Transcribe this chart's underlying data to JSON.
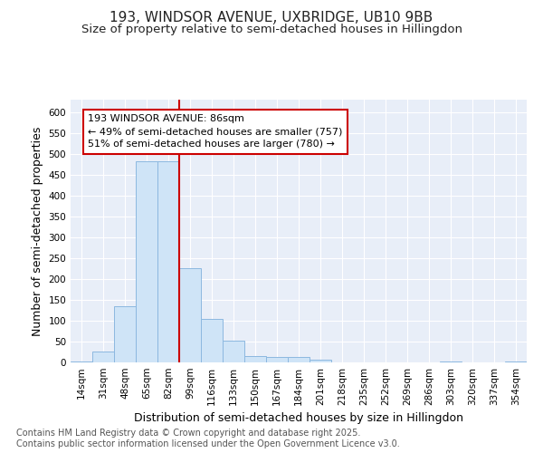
{
  "title_line1": "193, WINDSOR AVENUE, UXBRIDGE, UB10 9BB",
  "title_line2": "Size of property relative to semi-detached houses in Hillingdon",
  "xlabel": "Distribution of semi-detached houses by size in Hillingdon",
  "ylabel": "Number of semi-detached properties",
  "categories": [
    "14sqm",
    "31sqm",
    "48sqm",
    "65sqm",
    "82sqm",
    "99sqm",
    "116sqm",
    "133sqm",
    "150sqm",
    "167sqm",
    "184sqm",
    "201sqm",
    "218sqm",
    "235sqm",
    "252sqm",
    "269sqm",
    "286sqm",
    "303sqm",
    "320sqm",
    "337sqm",
    "354sqm"
  ],
  "values": [
    3,
    27,
    135,
    483,
    483,
    225,
    105,
    52,
    15,
    13,
    13,
    7,
    0,
    0,
    0,
    0,
    0,
    2,
    0,
    0,
    3
  ],
  "bar_color": "#cfe4f7",
  "bar_edge_color": "#8cb8e0",
  "red_line_x": 4.5,
  "red_line_color": "#cc0000",
  "annotation_text": "193 WINDSOR AVENUE: 86sqm\n← 49% of semi-detached houses are smaller (757)\n51% of semi-detached houses are larger (780) →",
  "annotation_box_color": "#ffffff",
  "annotation_box_edge_color": "#cc0000",
  "ylim": [
    0,
    630
  ],
  "yticks": [
    0,
    50,
    100,
    150,
    200,
    250,
    300,
    350,
    400,
    450,
    500,
    550,
    600
  ],
  "footer_text": "Contains HM Land Registry data © Crown copyright and database right 2025.\nContains public sector information licensed under the Open Government Licence v3.0.",
  "fig_bg_color": "#ffffff",
  "plot_bg_color": "#e8eef8",
  "title_fontsize": 11,
  "subtitle_fontsize": 9.5,
  "tick_fontsize": 7.5,
  "label_fontsize": 9,
  "annotation_fontsize": 8,
  "footer_fontsize": 7
}
